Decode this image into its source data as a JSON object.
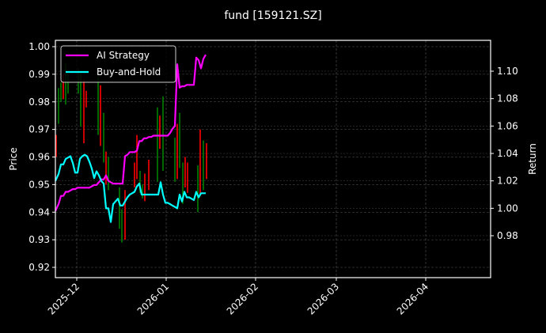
{
  "chart_data": {
    "type": "line",
    "title": "fund [159121.SZ]",
    "xlabel": "",
    "ylabel": "Price",
    "ylabel_right": "Return",
    "ylim": [
      0.9175,
      1.0015
    ],
    "ylim_right": [
      0.967,
      1.1195
    ],
    "grid": true,
    "legend_position": "upper left",
    "x_ticks": [
      "2025-12",
      "2026-01",
      "2026-02",
      "2026-03",
      "2026-04"
    ],
    "y_ticks": [
      "0.92",
      "0.93",
      "0.94",
      "0.95",
      "0.96",
      "0.97",
      "0.98",
      "0.99",
      "1.00"
    ],
    "y_ticks_right": [
      "0.98",
      "1.00",
      "1.02",
      "1.04",
      "1.06",
      "1.08",
      "1.10"
    ],
    "colors": {
      "background": "#000000",
      "ai_strategy": "#ff00ff",
      "buy_and_hold": "#00ffff",
      "candle_up": "#008000",
      "candle_down": "#ff0000",
      "grid": "#555555",
      "axes": "#ffffff"
    },
    "series": [
      {
        "name": "AI Strategy",
        "axis": "right",
        "color": "#ff00ff",
        "x": [
          70,
          74,
          77,
          80,
          83,
          86,
          89,
          92,
          95,
          98,
          101,
          104,
          107,
          110,
          113,
          116,
          119,
          122,
          125,
          128,
          131,
          134,
          137,
          140,
          143,
          146,
          149,
          152,
          155,
          158,
          161,
          164,
          167,
          170,
          173,
          176,
          179,
          182,
          185,
          188,
          191,
          194,
          197,
          200,
          203,
          206,
          209,
          212,
          215,
          218,
          221,
          224,
          227,
          230,
          233,
          236,
          239,
          242,
          245,
          248,
          251,
          254,
          257,
          260
        ],
        "values": [
          0.998,
          1.003,
          1.009,
          1.009,
          1.012,
          1.012,
          1.013,
          1.014,
          1.014,
          1.015,
          1.015,
          1.015,
          1.015,
          1.015,
          1.015,
          1.016,
          1.017,
          1.017,
          1.019,
          1.021,
          1.021,
          1.024,
          1.02,
          1.019,
          1.018,
          1.018,
          1.018,
          1.018,
          1.018,
          1.038,
          1.039,
          1.041,
          1.041,
          1.041,
          1.042,
          1.049,
          1.049,
          1.051,
          1.051,
          1.052,
          1.052,
          1.053,
          1.053,
          1.053,
          1.053,
          1.053,
          1.053,
          1.053,
          1.055,
          1.058,
          1.06,
          1.105,
          1.088,
          1.089,
          1.089,
          1.09,
          1.09,
          1.09,
          1.09,
          1.11,
          1.108,
          1.102,
          1.109,
          1.112
        ]
      },
      {
        "name": "Buy-and-Hold",
        "axis": "right",
        "color": "#00ffff",
        "x": [
          70,
          74,
          77,
          80,
          83,
          86,
          89,
          92,
          95,
          98,
          101,
          104,
          107,
          110,
          113,
          116,
          119,
          122,
          125,
          128,
          131,
          134,
          137,
          140,
          143,
          146,
          149,
          152,
          155,
          158,
          161,
          164,
          167,
          170,
          173,
          176,
          179,
          182,
          185,
          188,
          191,
          194,
          197,
          200,
          203,
          206,
          209,
          212,
          215,
          218,
          221,
          224,
          227,
          230,
          233,
          236,
          239,
          242,
          245,
          248,
          251,
          254,
          257,
          260
        ],
        "values": [
          1.02,
          1.025,
          1.032,
          1.032,
          1.036,
          1.037,
          1.038,
          1.033,
          1.026,
          1.026,
          1.036,
          1.038,
          1.039,
          1.038,
          1.034,
          1.029,
          1.022,
          1.027,
          1.024,
          1.02,
          1.018,
          1.0,
          1.0,
          0.99,
          1.003,
          1.005,
          1.007,
          1.002,
          1.002,
          1.005,
          1.008,
          1.01,
          1.011,
          1.012,
          1.016,
          1.018,
          1.01,
          1.01,
          1.01,
          1.01,
          1.01,
          1.01,
          1.01,
          1.01,
          1.019,
          1.01,
          1.004,
          1.004,
          1.003,
          1.002,
          1.001,
          1.0,
          1.01,
          1.005,
          1.012,
          1.008,
          1.008,
          1.007,
          1.006,
          1.012,
          1.008,
          1.011,
          1.011,
          1.011
        ]
      }
    ],
    "candles": [
      {
        "x": 71,
        "hi": 0.968,
        "lo": 0.96,
        "up": false
      },
      {
        "x": 74,
        "hi": 0.985,
        "lo": 0.972,
        "up": true
      },
      {
        "x": 77,
        "hi": 0.987,
        "lo": 0.98,
        "up": true
      },
      {
        "x": 80,
        "hi": 0.99,
        "lo": 0.981,
        "up": false
      },
      {
        "x": 83,
        "hi": 0.994,
        "lo": 0.979,
        "up": true
      },
      {
        "x": 86,
        "hi": 0.99,
        "lo": 0.983,
        "up": true
      },
      {
        "x": 99,
        "hi": 0.992,
        "lo": 0.983,
        "up": true
      },
      {
        "x": 102,
        "hi": 0.99,
        "lo": 0.971,
        "up": true
      },
      {
        "x": 106,
        "hi": 0.988,
        "lo": 0.965,
        "up": false
      },
      {
        "x": 109,
        "hi": 0.984,
        "lo": 0.978,
        "up": false
      },
      {
        "x": 124,
        "hi": 0.989,
        "lo": 0.968,
        "up": true
      },
      {
        "x": 127,
        "hi": 0.986,
        "lo": 0.964,
        "up": false
      },
      {
        "x": 131,
        "hi": 0.976,
        "lo": 0.958,
        "up": true
      },
      {
        "x": 134,
        "hi": 0.962,
        "lo": 0.95,
        "up": false
      },
      {
        "x": 137,
        "hi": 0.96,
        "lo": 0.948,
        "up": true
      },
      {
        "x": 151,
        "hi": 0.949,
        "lo": 0.934,
        "up": true
      },
      {
        "x": 154,
        "hi": 0.941,
        "lo": 0.929,
        "up": true
      },
      {
        "x": 158,
        "hi": 0.948,
        "lo": 0.93,
        "up": false
      },
      {
        "x": 170,
        "hi": 0.958,
        "lo": 0.949,
        "up": false
      },
      {
        "x": 173,
        "hi": 0.968,
        "lo": 0.952,
        "up": false
      },
      {
        "x": 177,
        "hi": 0.955,
        "lo": 0.947,
        "up": true
      },
      {
        "x": 180,
        "hi": 0.95,
        "lo": 0.945,
        "up": true
      },
      {
        "x": 183,
        "hi": 0.954,
        "lo": 0.944,
        "up": false
      },
      {
        "x": 188,
        "hi": 0.959,
        "lo": 0.948,
        "up": false
      },
      {
        "x": 199,
        "hi": 0.978,
        "lo": 0.951,
        "up": true
      },
      {
        "x": 202,
        "hi": 0.975,
        "lo": 0.963,
        "up": false
      },
      {
        "x": 206,
        "hi": 0.982,
        "lo": 0.955,
        "up": true
      },
      {
        "x": 221,
        "hi": 0.967,
        "lo": 0.951,
        "up": true
      },
      {
        "x": 224,
        "hi": 0.972,
        "lo": 0.952,
        "up": false
      },
      {
        "x": 227,
        "hi": 0.976,
        "lo": 0.956,
        "up": true
      },
      {
        "x": 231,
        "hi": 0.958,
        "lo": 0.943,
        "up": true
      },
      {
        "x": 234,
        "hi": 0.96,
        "lo": 0.949,
        "up": false
      },
      {
        "x": 237,
        "hi": 0.958,
        "lo": 0.947,
        "up": false
      },
      {
        "x": 250,
        "hi": 0.957,
        "lo": 0.94,
        "up": true
      },
      {
        "x": 253,
        "hi": 0.97,
        "lo": 0.946,
        "up": false
      },
      {
        "x": 257,
        "hi": 0.966,
        "lo": 0.948,
        "up": true
      },
      {
        "x": 261,
        "hi": 0.965,
        "lo": 0.952,
        "up": false
      }
    ]
  }
}
